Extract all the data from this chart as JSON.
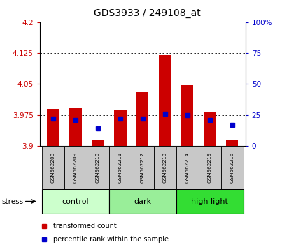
{
  "title": "GDS3933 / 249108_at",
  "samples": [
    "GSM562208",
    "GSM562209",
    "GSM562210",
    "GSM562211",
    "GSM562212",
    "GSM562213",
    "GSM562214",
    "GSM562215",
    "GSM562216"
  ],
  "red_values": [
    3.99,
    3.992,
    3.915,
    3.988,
    4.03,
    4.12,
    4.048,
    3.982,
    3.913
  ],
  "blue_values_pct": [
    22,
    21,
    14,
    22,
    22,
    26,
    25,
    21,
    17
  ],
  "ylim": [
    3.9,
    4.2
  ],
  "y2lim": [
    0,
    100
  ],
  "yticks": [
    3.9,
    3.975,
    4.05,
    4.125,
    4.2
  ],
  "y2ticks": [
    0,
    25,
    50,
    75,
    100
  ],
  "ytick_labels": [
    "3.9",
    "3.975",
    "4.05",
    "4.125",
    "4.2"
  ],
  "y2tick_labels": [
    "0",
    "25",
    "50",
    "75",
    "100%"
  ],
  "group_configs": [
    {
      "start": 0,
      "end": 2,
      "label": "control",
      "color": "#ccffcc"
    },
    {
      "start": 3,
      "end": 5,
      "label": "dark",
      "color": "#99ee99"
    },
    {
      "start": 6,
      "end": 8,
      "label": "high light",
      "color": "#33dd33"
    }
  ],
  "bar_color": "#cc0000",
  "dot_color": "#0000cc",
  "bar_width": 0.55,
  "base_value": 3.9,
  "grid_color": "#000000",
  "background_color": "#ffffff",
  "label_color_left": "#cc0000",
  "label_color_right": "#0000cc",
  "stress_label": "stress",
  "legend_red": "transformed count",
  "legend_blue": "percentile rank within the sample",
  "sample_box_color": "#c8c8c8",
  "title_fontsize": 10
}
